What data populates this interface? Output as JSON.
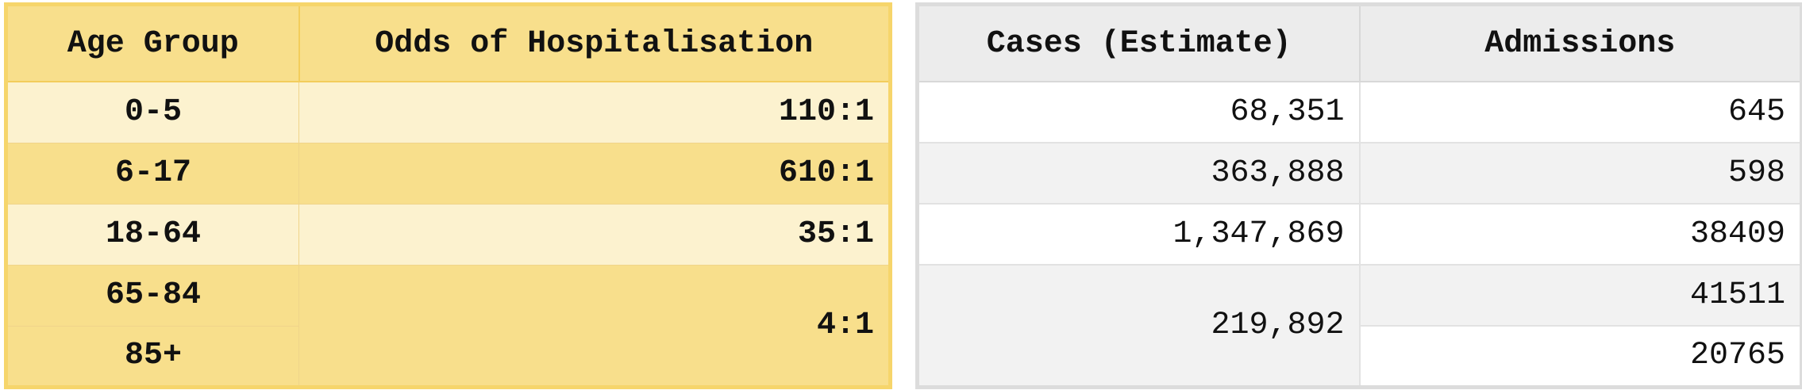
{
  "left_table": {
    "headers": [
      "Age Group",
      "Odds of Hospitalisation"
    ],
    "rows": [
      {
        "age": "0-5",
        "odds": "110:1"
      },
      {
        "age": "6-17",
        "odds": "610:1"
      },
      {
        "age": "18-64",
        "odds": "35:1"
      },
      {
        "age": "65-84",
        "odds": "4:1"
      },
      {
        "age": "85+"
      }
    ]
  },
  "right_table": {
    "headers": [
      "Cases (Estimate)",
      "Admissions"
    ],
    "rows": [
      {
        "cases": "68,351",
        "admissions": "645"
      },
      {
        "cases": "363,888",
        "admissions": "598"
      },
      {
        "cases": "1,347,869",
        "admissions": "38409"
      },
      {
        "cases": "219,892",
        "admissions": "41511"
      },
      {
        "admissions": "20765"
      }
    ]
  },
  "colors": {
    "yellow_header": "#f8df8c",
    "yellow_light": "#fcf2cf",
    "yellow_border": "#f6d56b",
    "gray_header": "#ececec",
    "gray_row": "#f2f2f2"
  }
}
